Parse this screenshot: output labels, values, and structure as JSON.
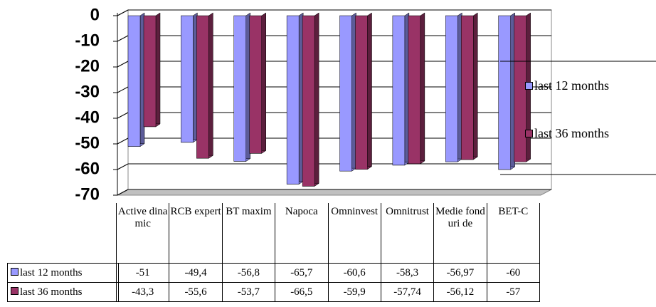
{
  "chart_data": {
    "type": "bar",
    "categories": [
      "Active dinamic",
      "RCB expert",
      "BT maxim",
      "Napoca",
      "Omninvest",
      "Omnitrust",
      "Medie fonduri de",
      "BET-C"
    ],
    "series": [
      {
        "name": "last 12 months",
        "color": "#9999ff",
        "values": [
          -51,
          -49.4,
          -56.8,
          -65.7,
          -60.6,
          -58.3,
          -56.97,
          -60
        ],
        "value_labels": [
          "-51",
          "-49,4",
          "-56,8",
          "-65,7",
          "-60,6",
          "-58,3",
          "-56,97",
          "-60"
        ]
      },
      {
        "name": "last 36 months",
        "color": "#993366",
        "values": [
          -43.3,
          -55.6,
          -53.7,
          -66.5,
          -59.9,
          -57.74,
          -56.12,
          -57
        ],
        "value_labels": [
          "-43,3",
          "-55,6",
          "-53,7",
          "-66,5",
          "-59,9",
          "-57,74",
          "-56,12",
          "-57"
        ]
      }
    ],
    "ylim": [
      -70,
      0
    ],
    "yticks": [
      0,
      -10,
      -20,
      -30,
      -40,
      -50,
      -60,
      -70
    ],
    "grid": true,
    "legend": "right"
  }
}
